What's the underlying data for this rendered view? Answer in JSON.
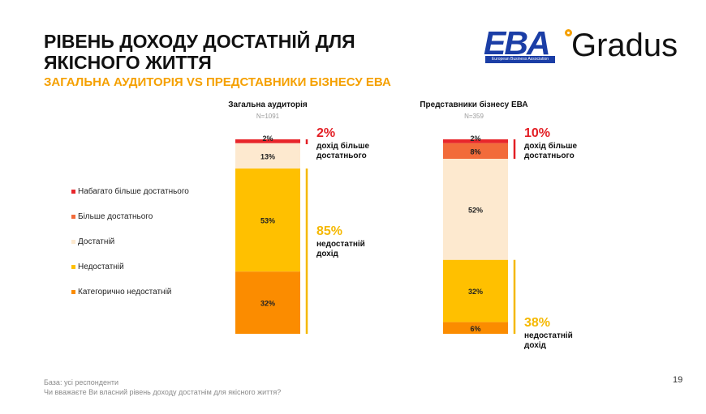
{
  "header": {
    "title": "РІВЕНЬ ДОХОДУ ДОСТАТНІЙ ДЛЯ ЯКІСНОГО ЖИТТЯ",
    "subtitle": "ЗАГАЛЬНА АУДИТОРІЯ VS ПРЕДСТАВНИКИ БІЗНЕСУ ЕВА"
  },
  "logos": {
    "eba": "EBA",
    "eba_tagline": "European Business Association",
    "gradus": "Gradus"
  },
  "colors": {
    "much_more": "#e8262b",
    "more": "#f26b3a",
    "enough": "#fde9cf",
    "not_enough": "#ffc000",
    "absolutely_not": "#fb8c00",
    "accent_red": "#e31e24",
    "accent_yellow": "#f5b800"
  },
  "chart_data": {
    "type": "bar",
    "stacked": true,
    "categories": [
      "Загальна аудиторія",
      "Представники бізнесу ЕВА"
    ],
    "sample_sizes": [
      "N=1091",
      "N=359"
    ],
    "series": [
      {
        "name": "Набагато більше достатнього",
        "values": [
          2,
          2
        ],
        "color": "#e8262b"
      },
      {
        "name": "Більше достатнього",
        "values": [
          0,
          8
        ],
        "color": "#f26b3a"
      },
      {
        "name": "Достатній",
        "values": [
          13,
          52
        ],
        "color": "#fde9cf"
      },
      {
        "name": "Недостатній",
        "values": [
          53,
          32
        ],
        "color": "#ffc000"
      },
      {
        "name": "Категорично недостатній",
        "values": [
          32,
          6
        ],
        "color": "#fb8c00"
      }
    ],
    "legend_position": "left",
    "annotations": [
      {
        "column": 0,
        "group": "top",
        "value": "2%",
        "label_lines": [
          "дохід більше",
          "достатнього"
        ],
        "color": "#e31e24"
      },
      {
        "column": 0,
        "group": "bottom",
        "value": "85%",
        "label_lines": [
          "недостатній",
          "дохід"
        ],
        "color": "#f5b800"
      },
      {
        "column": 1,
        "group": "top",
        "value": "10%",
        "label_lines": [
          "дохід більше",
          "достатнього"
        ],
        "color": "#e31e24"
      },
      {
        "column": 1,
        "group": "bottom",
        "value": "38%",
        "label_lines": [
          "недостатній",
          "дохід"
        ],
        "color": "#f5b800"
      }
    ]
  },
  "footer": {
    "base": "База: усі респонденти",
    "question": "Чи вважаєте Ви власний рівень доходу достатнім для якісного життя?",
    "page_number": "19"
  }
}
